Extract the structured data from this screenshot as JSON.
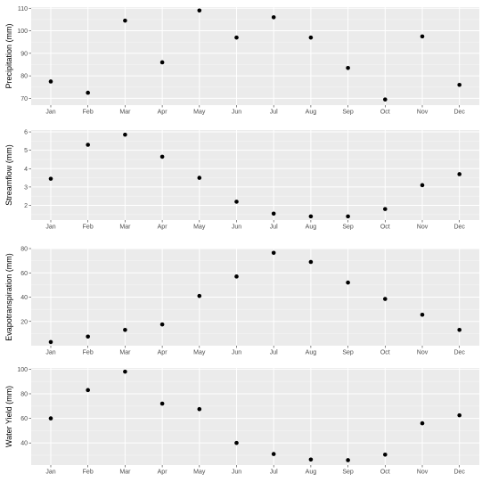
{
  "chart_data": [
    {
      "type": "scatter",
      "title": "",
      "xlabel": "",
      "ylabel": "Precipitation (mm)",
      "categories": [
        "Jan",
        "Feb",
        "Mar",
        "Apr",
        "May",
        "Jun",
        "Jul",
        "Aug",
        "Sep",
        "Oct",
        "Nov",
        "Dec"
      ],
      "values": [
        77.5,
        72.5,
        104.5,
        86,
        109,
        97,
        106,
        97,
        83.5,
        69.5,
        97.5,
        76
      ],
      "ylim": [
        67,
        110.5
      ],
      "yticks": [
        70,
        80,
        90,
        100,
        110
      ],
      "grid": true
    },
    {
      "type": "scatter",
      "title": "",
      "xlabel": "",
      "ylabel": "Streamflow (mm)",
      "categories": [
        "Jan",
        "Feb",
        "Mar",
        "Apr",
        "May",
        "Jun",
        "Jul",
        "Aug",
        "Sep",
        "Oct",
        "Nov",
        "Dec"
      ],
      "values": [
        3.45,
        5.3,
        5.85,
        4.65,
        3.5,
        2.2,
        1.55,
        1.4,
        1.4,
        1.8,
        3.1,
        3.7
      ],
      "ylim": [
        1.2,
        6.1
      ],
      "yticks": [
        2,
        3,
        4,
        5,
        6
      ],
      "grid": true
    },
    {
      "type": "scatter",
      "title": "",
      "xlabel": "",
      "ylabel": "Evapotranspiration (mm)",
      "categories": [
        "Jan",
        "Feb",
        "Mar",
        "Apr",
        "May",
        "Jun",
        "Jul",
        "Aug",
        "Sep",
        "Oct",
        "Nov",
        "Dec"
      ],
      "values": [
        3,
        7.5,
        13,
        17.5,
        41,
        57,
        76.5,
        69,
        52,
        38.5,
        25.5,
        13
      ],
      "ylim": [
        0,
        80
      ],
      "yticks": [
        20,
        40,
        60,
        80
      ],
      "grid": true
    },
    {
      "type": "scatter",
      "title": "",
      "xlabel": "",
      "ylabel": "Water Yield (mm)",
      "categories": [
        "Jan",
        "Feb",
        "Mar",
        "Apr",
        "May",
        "Jun",
        "Jul",
        "Aug",
        "Sep",
        "Oct",
        "Nov",
        "Dec"
      ],
      "values": [
        60,
        83,
        98,
        72,
        67.5,
        40,
        31,
        26.5,
        26,
        30.5,
        56,
        62.5
      ],
      "ylim": [
        22,
        101
      ],
      "yticks": [
        40,
        60,
        80,
        100
      ],
      "grid": true
    }
  ],
  "colors": {
    "panel_background": "#ebebeb",
    "grid_major": "#ffffff",
    "point": "#000000",
    "tick_text": "#4d4d4d"
  }
}
